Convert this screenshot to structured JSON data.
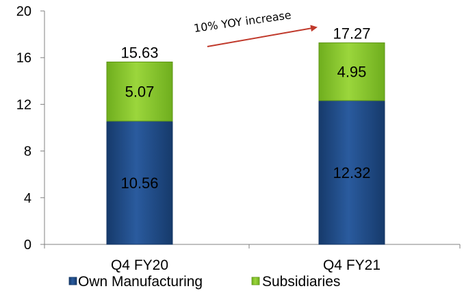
{
  "chart_data": {
    "type": "bar",
    "stacked": true,
    "categories": [
      "Q4  FY20",
      "Q4 FY21"
    ],
    "series": [
      {
        "name": "Own Manufacturing",
        "values": [
          10.56,
          12.32
        ],
        "color": "#1f4e8c"
      },
      {
        "name": "Subsidiaries",
        "values": [
          5.07,
          4.95
        ],
        "color": "#8ccf2e"
      }
    ],
    "totals": [
      "15.63",
      "17.27"
    ],
    "segment_labels": [
      [
        "10.56",
        "12.32"
      ],
      [
        "5.07",
        "4.95"
      ]
    ],
    "ylim": [
      0,
      20
    ],
    "yticks": [
      "0",
      "4",
      "8",
      "12",
      "16",
      "20"
    ],
    "annotation": "10% YOY  increase",
    "legend_position": "bottom",
    "grid": false
  }
}
